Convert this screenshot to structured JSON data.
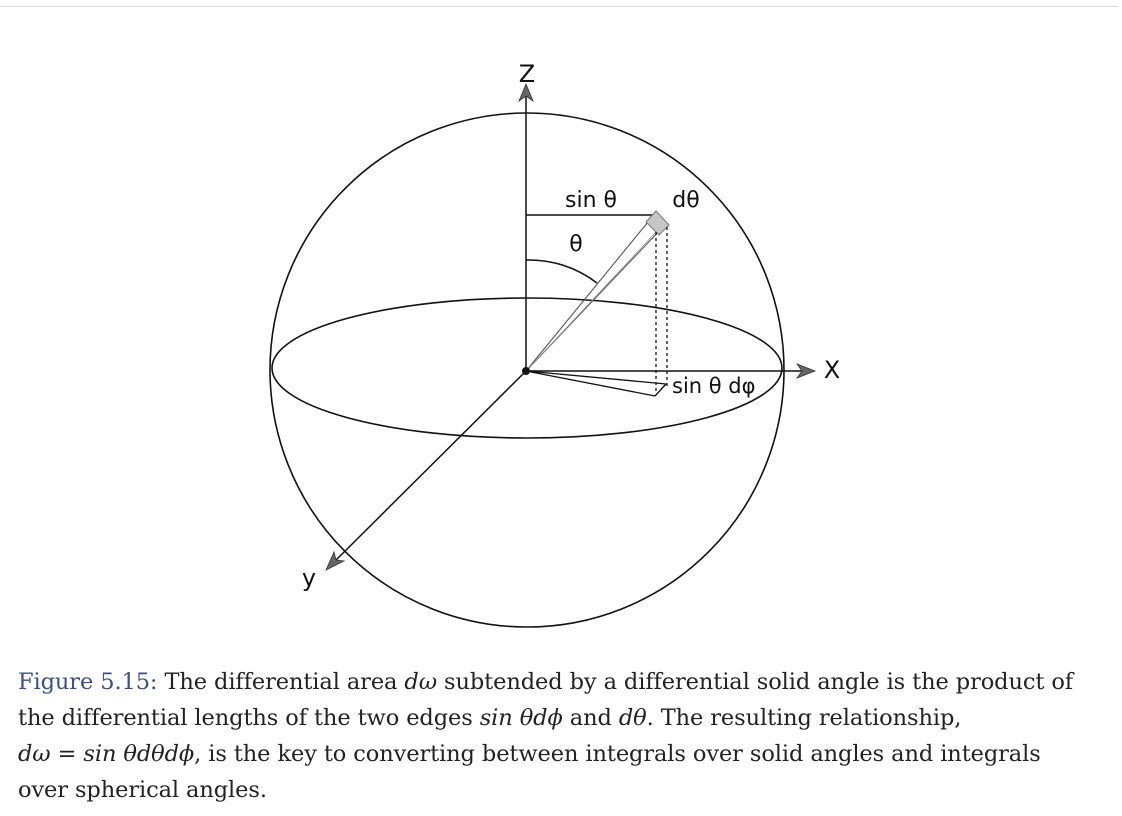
{
  "diagram": {
    "axis_labels": {
      "z": "Z",
      "x": "X",
      "y": "y"
    },
    "annotations": {
      "sin_theta": "sin θ",
      "theta": "θ",
      "d_theta": "dθ",
      "sin_theta_dphi": "sin θ dφ"
    }
  },
  "caption": {
    "figure_ref": "Figure 5.15:",
    "line1_text": " The differential area ",
    "dw": "dω",
    "line1_rest": " subtended by a differential solid angle is the product of",
    "line2_text": "the differential lengths of the two edges ",
    "expr1": "sin θdϕ",
    "line2_and": " and ",
    "expr2": "dθ",
    "line2_rest": ". The resulting relationship,",
    "expr3": "dω = sin θdθdϕ",
    "line3_rest": ", is the key to converting between integrals over solid angles and integrals",
    "line4": "over spherical angles."
  }
}
